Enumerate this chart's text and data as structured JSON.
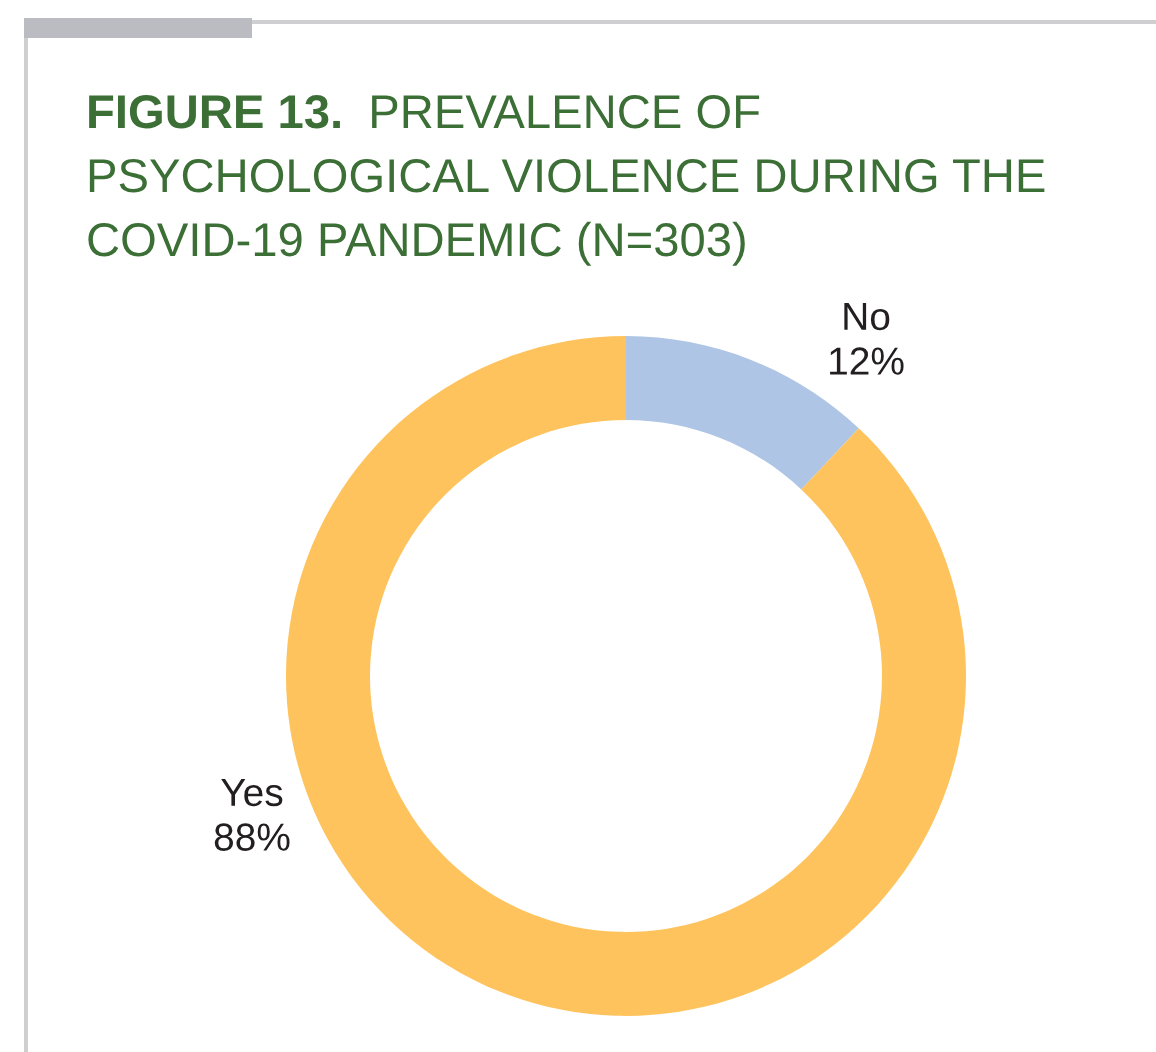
{
  "chart_data": {
    "type": "donut",
    "title": "FIGURE 13. PREVALENCE OF PSYCHOLOGICAL VIOLENCE DURING THE COVID-19 PANDEMIC (N=303)",
    "categories": [
      "No",
      "Yes"
    ],
    "values": [
      12,
      88
    ],
    "colors": [
      "#aec5e5",
      "#fec35c"
    ],
    "value_labels": [
      "12%",
      "88%"
    ]
  }
}
